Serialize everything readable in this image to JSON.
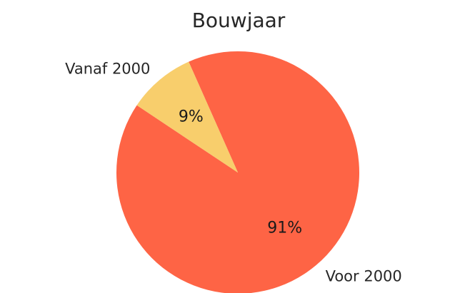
{
  "chart_data": {
    "type": "pie",
    "title": "Bouwjaar",
    "slices": [
      {
        "label": "Voor 2000",
        "value": 91,
        "pct_label": "91%",
        "color": "#fe6445"
      },
      {
        "label": "Vanaf 2000",
        "value": 9,
        "pct_label": "9%",
        "color": "#f8ce6c"
      }
    ],
    "start_angle_deg": 146.3,
    "direction": "counterclockwise",
    "legend": "none"
  }
}
